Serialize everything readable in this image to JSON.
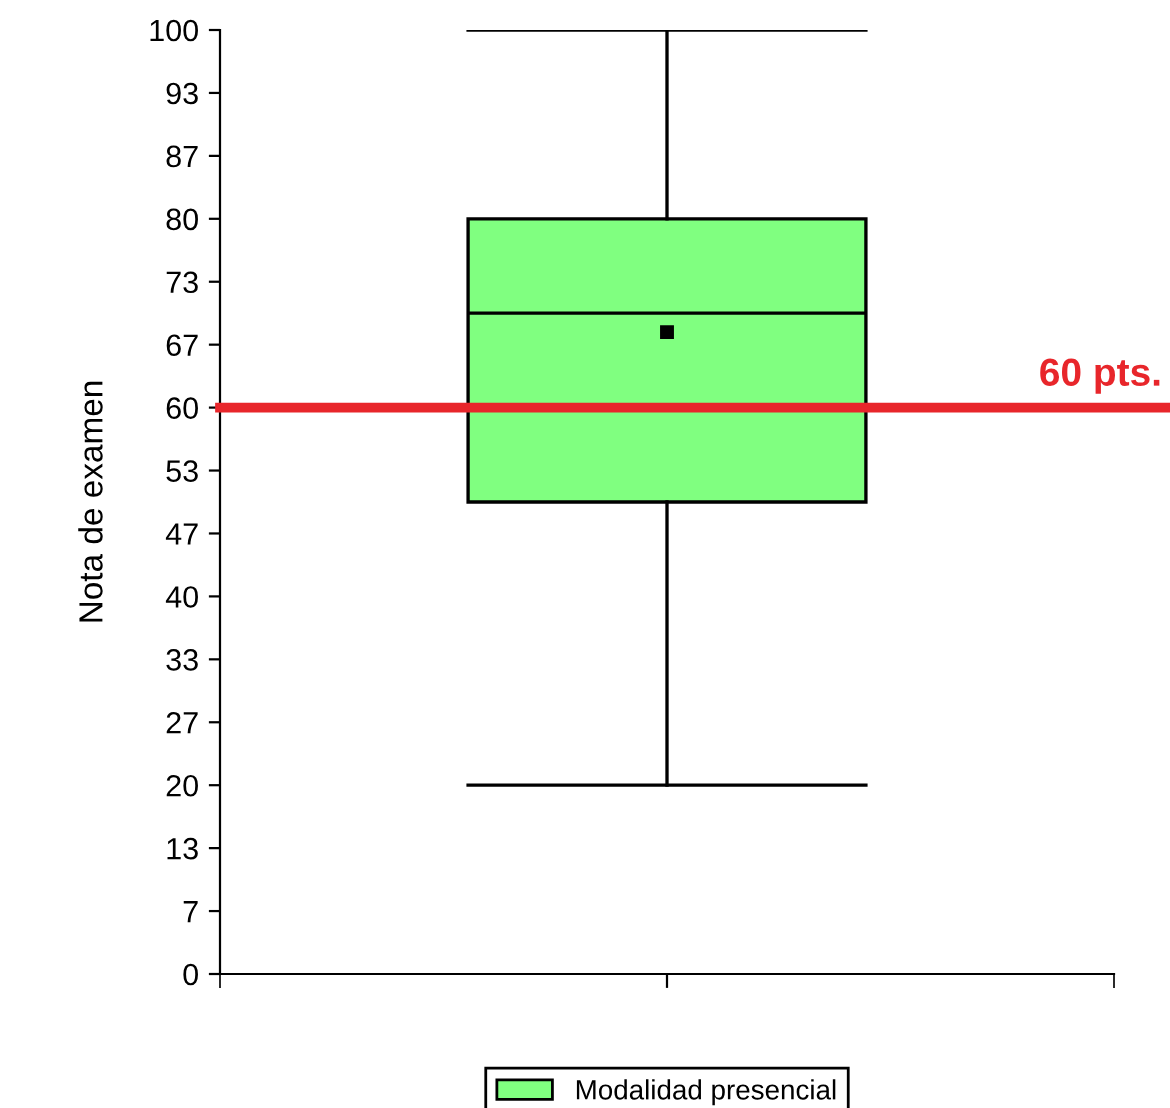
{
  "chart_data": {
    "type": "box",
    "ylabel": "Nota de examen",
    "categories": [
      null
    ],
    "series": [
      {
        "name": "Modalidad presencial",
        "color": "#80ff80",
        "boxes": [
          {
            "low": 20,
            "q1": 50,
            "median": 70,
            "q3": 80,
            "high": 100,
            "mean": 68
          }
        ]
      }
    ],
    "ylim": [
      0,
      100
    ],
    "yticks": [
      0,
      {
        "value": 6.667,
        "label": "7"
      },
      {
        "value": 13.333,
        "label": "13"
      },
      20,
      {
        "value": 26.667,
        "label": "27"
      },
      {
        "value": 33.333,
        "label": "33"
      },
      40,
      {
        "value": 46.667,
        "label": "47"
      },
      {
        "value": 53.333,
        "label": "53"
      },
      60,
      {
        "value": 66.667,
        "label": "67"
      },
      {
        "value": 73.333,
        "label": "73"
      },
      80,
      {
        "value": 86.667,
        "label": "87"
      },
      {
        "value": 93.333,
        "label": "93"
      },
      100
    ],
    "ref_lines": [
      {
        "axis": "y",
        "value": 60,
        "label": "60 pts.",
        "color": "#e8262b"
      }
    ],
    "legend": "bottom",
    "grid": false
  }
}
